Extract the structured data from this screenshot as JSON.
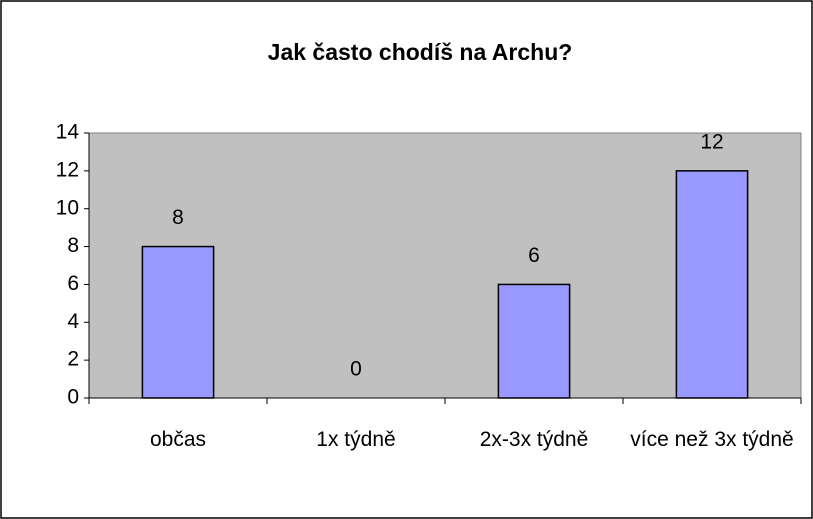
{
  "chart_data": {
    "type": "bar",
    "title": "Jak často chodíš na Archu?",
    "categories": [
      "občas",
      "1x týdně",
      "2x-3x týdně",
      "více než 3x týdně"
    ],
    "values": [
      8,
      0,
      6,
      12
    ],
    "color": "#9999ff",
    "plot_background": "#c0c0c0",
    "ylim": [
      0,
      14
    ],
    "yticks": [
      0,
      2,
      4,
      6,
      8,
      10,
      12,
      14
    ],
    "grid": false
  }
}
